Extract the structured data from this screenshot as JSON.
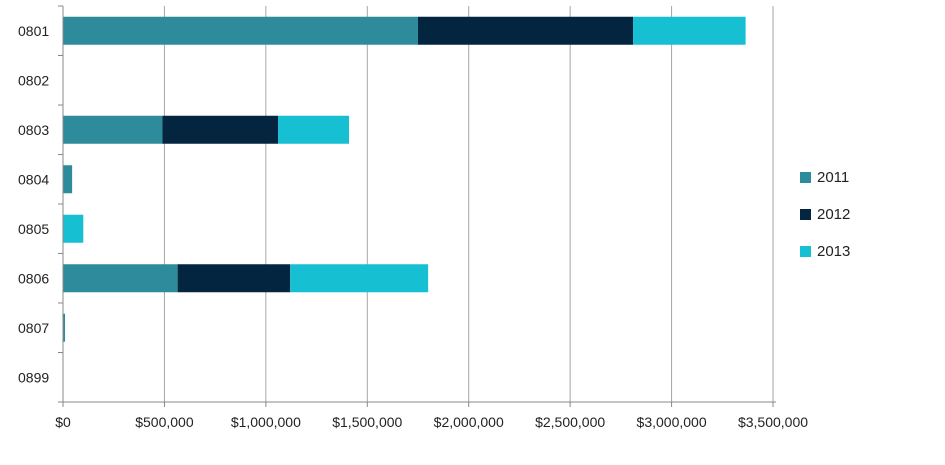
{
  "colors": {
    "2011": "#2e8b9c",
    "2012": "#03253f",
    "2013": "#17bfd3",
    "grid": "#a6a6a6",
    "axis": "#888888"
  },
  "chart_data": {
    "type": "bar",
    "orientation": "horizontal",
    "stacked": true,
    "title": "",
    "xlabel": "",
    "ylabel": "",
    "categories": [
      "0801",
      "0802",
      "0803",
      "0804",
      "0805",
      "0806",
      "0807",
      "0899"
    ],
    "series": [
      {
        "name": "2011",
        "values": [
          1750000,
          0,
          490000,
          45000,
          0,
          565000,
          10000,
          0
        ]
      },
      {
        "name": "2012",
        "values": [
          1060000,
          0,
          570000,
          0,
          0,
          555000,
          0,
          0
        ]
      },
      {
        "name": "2013",
        "values": [
          555000,
          0,
          350000,
          0,
          100000,
          680000,
          0,
          0
        ]
      }
    ],
    "xlim": [
      0,
      3500000
    ],
    "xticks": [
      0,
      500000,
      1000000,
      1500000,
      2000000,
      2500000,
      3000000,
      3500000
    ],
    "xtick_labels": [
      "$0",
      "$500,000",
      "$1,000,000",
      "$1,500,000",
      "$2,000,000",
      "$2,500,000",
      "$3,000,000",
      "$3,500,000"
    ],
    "grid": true,
    "legend_position": "right"
  }
}
